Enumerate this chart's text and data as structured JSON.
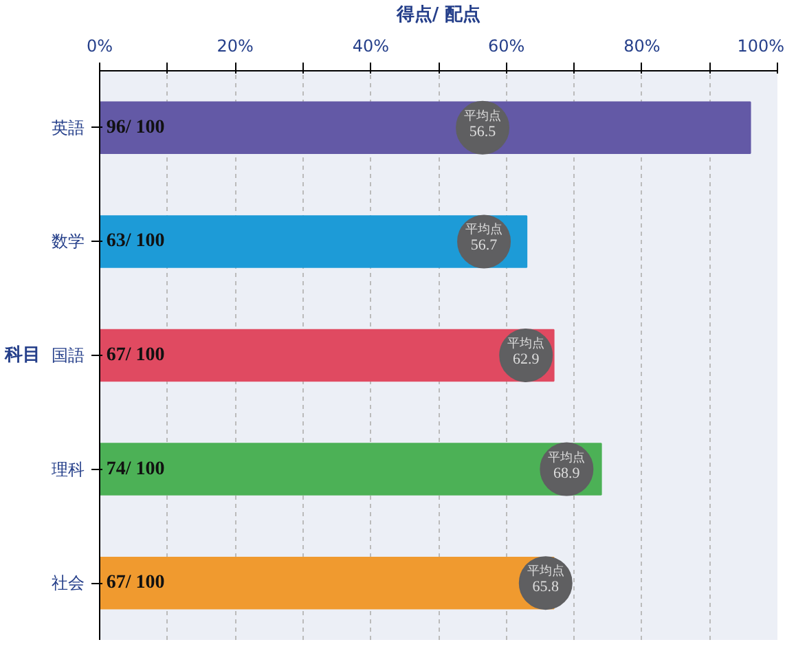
{
  "chart_data": {
    "type": "bar",
    "orientation": "horizontal",
    "xlabel": "得点/ 配点",
    "ylabel": "科目",
    "categories": [
      "英語",
      "数学",
      "国語",
      "理科",
      "社会"
    ],
    "xlim": [
      0,
      100
    ],
    "xticks": [
      {
        "value": 0,
        "label": "0%"
      },
      {
        "value": 10,
        "label": null
      },
      {
        "value": 20,
        "label": "20%"
      },
      {
        "value": 30,
        "label": null
      },
      {
        "value": 40,
        "label": "40%"
      },
      {
        "value": 50,
        "label": null
      },
      {
        "value": 60,
        "label": "60%"
      },
      {
        "value": 70,
        "label": null
      },
      {
        "value": 80,
        "label": "80%"
      },
      {
        "value": 90,
        "label": null
      },
      {
        "value": 100,
        "label": "100%"
      }
    ],
    "grid": "x",
    "series": [
      {
        "colors": [
          "#6359a6",
          "#1d9bd7",
          "#e04a61",
          "#4cb156",
          "#f09a2f"
        ],
        "values": [
          96,
          63,
          67,
          74,
          67
        ],
        "value_labels": [
          "96/ 100",
          "63/ 100",
          "67/ 100",
          "74/ 100",
          "67/ 100"
        ]
      },
      {
        "type": "scatter",
        "name": "平均点",
        "color": "#5f5f61",
        "marker": "circle",
        "values": [
          56.5,
          56.7,
          62.9,
          68.9,
          65.8
        ],
        "value_labels": [
          "56.5",
          "56.7",
          "62.9",
          "68.9",
          "65.8"
        ]
      }
    ]
  }
}
